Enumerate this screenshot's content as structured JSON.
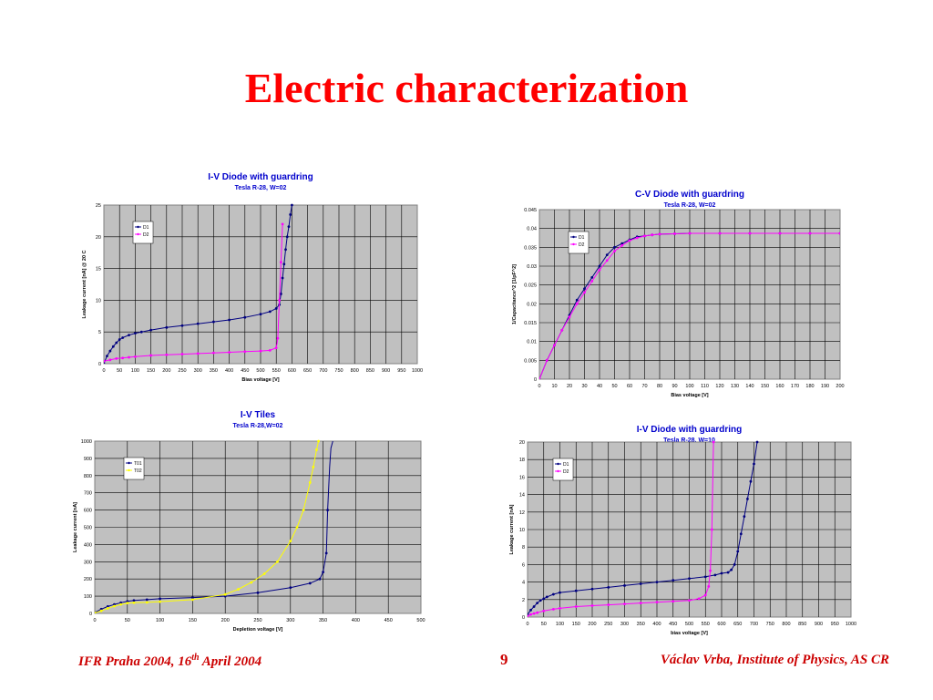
{
  "slide": {
    "title": "Electric characterization",
    "footer_left_pre": "IFR Praha 2004, 16",
    "footer_left_sup": "th",
    "footer_left_post": " April 2004",
    "page_number": "9",
    "footer_right": "Václav Vrba, Institute of Physics, AS CR"
  },
  "colors": {
    "title": "#ff0000",
    "footer": "#cc0000",
    "plot_bg": "#c0c0c0",
    "chart_title": "#0000cc",
    "series_navy": "#000080",
    "series_magenta": "#ff00ff",
    "series_yellow": "#ffff00"
  },
  "chart_data": [
    {
      "type": "line",
      "title": "I-V Diode with guardring",
      "subtitle": "Tesla R-28, W=02",
      "xlabel": "Bias voltage [V]",
      "ylabel": "Leakage current [nA] @ 20 C",
      "xlim": [
        0,
        1000
      ],
      "ylim": [
        0,
        25
      ],
      "xticks": [
        "0",
        "50",
        "100",
        "150",
        "200",
        "250",
        "300",
        "350",
        "400",
        "450",
        "500",
        "550",
        "600",
        "650",
        "700",
        "750",
        "800",
        "850",
        "900",
        "950",
        "1000"
      ],
      "yticks": [
        "0",
        "5",
        "10",
        "15",
        "20",
        "25"
      ],
      "grid": true,
      "legend_position": "top-left",
      "series": [
        {
          "name": "D1",
          "color": "#000080",
          "x": [
            0,
            10,
            20,
            30,
            40,
            50,
            60,
            80,
            100,
            120,
            150,
            200,
            250,
            300,
            350,
            400,
            450,
            500,
            530,
            550,
            560,
            565,
            570,
            575,
            580,
            585,
            590,
            595,
            600
          ],
          "y": [
            0,
            1.2,
            2.0,
            2.7,
            3.3,
            3.8,
            4.1,
            4.5,
            4.8,
            5.0,
            5.3,
            5.7,
            6.0,
            6.3,
            6.6,
            6.9,
            7.3,
            7.8,
            8.2,
            8.7,
            9.3,
            11.0,
            13.5,
            15.7,
            18.0,
            20.0,
            21.6,
            23.5,
            25
          ]
        },
        {
          "name": "D2",
          "color": "#ff00ff",
          "x": [
            0,
            20,
            40,
            60,
            80,
            100,
            150,
            200,
            250,
            300,
            350,
            400,
            450,
            500,
            530,
            550,
            555,
            560,
            565,
            570
          ],
          "y": [
            0.4,
            0.6,
            0.8,
            0.9,
            1.0,
            1.1,
            1.3,
            1.4,
            1.5,
            1.6,
            1.7,
            1.8,
            1.9,
            2.0,
            2.1,
            2.5,
            4.0,
            10.0,
            16.0,
            22.0
          ]
        }
      ]
    },
    {
      "type": "line",
      "title": "C-V Diode with guardring",
      "subtitle": "Tesla R-28, W=02",
      "xlabel": "Bias voltage [V]",
      "ylabel": "1/Capacitance^2 [1/pF^2]",
      "xlim": [
        0,
        200
      ],
      "ylim": [
        0,
        0.045
      ],
      "xticks": [
        "0",
        "10",
        "20",
        "30",
        "40",
        "50",
        "60",
        "70",
        "80",
        "90",
        "100",
        "110",
        "120",
        "130",
        "140",
        "150",
        "160",
        "170",
        "180",
        "190",
        "200"
      ],
      "yticks": [
        "0",
        "0.005",
        "0.01",
        "0.015",
        "0.02",
        "0.025",
        "0.03",
        "0.035",
        "0.04",
        "0.045"
      ],
      "grid": true,
      "legend_position": "top-left",
      "series": [
        {
          "name": "D1",
          "color": "#000080",
          "x": [
            0,
            5,
            10,
            15,
            20,
            25,
            30,
            35,
            40,
            45,
            50,
            55,
            60,
            65,
            70,
            75,
            80,
            90,
            100,
            120,
            140,
            160,
            180,
            200
          ],
          "y": [
            0,
            0.005,
            0.009,
            0.013,
            0.017,
            0.021,
            0.024,
            0.027,
            0.03,
            0.033,
            0.035,
            0.036,
            0.037,
            0.0378,
            0.038,
            0.0383,
            0.0385,
            0.0386,
            0.0387,
            0.0387,
            0.0387,
            0.0387,
            0.0387,
            0.0387
          ]
        },
        {
          "name": "D2",
          "color": "#ff00ff",
          "x": [
            0,
            5,
            10,
            15,
            20,
            25,
            30,
            35,
            40,
            45,
            50,
            55,
            60,
            65,
            70,
            75,
            80,
            90,
            100,
            120,
            140,
            160,
            180,
            200
          ],
          "y": [
            0,
            0.005,
            0.009,
            0.013,
            0.0165,
            0.02,
            0.023,
            0.026,
            0.029,
            0.0315,
            0.034,
            0.0355,
            0.0368,
            0.0375,
            0.038,
            0.0383,
            0.0385,
            0.0386,
            0.0387,
            0.0387,
            0.0387,
            0.0387,
            0.0387,
            0.0387
          ]
        }
      ]
    },
    {
      "type": "line",
      "title": "I-V Tiles",
      "subtitle": "Tesla R-28,W=02",
      "xlabel": "Depletion voltage [V]",
      "ylabel": "Leakage current [nA]",
      "xlim": [
        0,
        500
      ],
      "ylim": [
        0,
        1000
      ],
      "xticks": [
        "0",
        "50",
        "100",
        "150",
        "200",
        "250",
        "300",
        "350",
        "400",
        "450",
        "500"
      ],
      "yticks": [
        "0",
        "100",
        "200",
        "300",
        "400",
        "500",
        "600",
        "700",
        "800",
        "900",
        "1000"
      ],
      "grid": true,
      "legend_position": "top-left",
      "series": [
        {
          "name": "T01",
          "color": "#000080",
          "x": [
            0,
            10,
            20,
            30,
            40,
            50,
            60,
            80,
            100,
            150,
            200,
            250,
            300,
            330,
            345,
            350,
            355,
            357,
            360,
            362,
            365
          ],
          "y": [
            5,
            25,
            40,
            52,
            62,
            70,
            75,
            80,
            85,
            92,
            100,
            120,
            150,
            175,
            200,
            240,
            350,
            600,
            850,
            960,
            1000
          ],
          "marker_max_x": 357
        },
        {
          "name": "T02",
          "color": "#ffff00",
          "x": [
            0,
            10,
            20,
            30,
            40,
            50,
            60,
            80,
            100,
            150,
            200,
            220,
            240,
            260,
            280,
            300,
            310,
            320,
            330,
            335,
            340,
            343
          ],
          "y": [
            3,
            15,
            30,
            42,
            52,
            60,
            62,
            64,
            68,
            80,
            110,
            140,
            180,
            230,
            300,
            420,
            500,
            600,
            760,
            850,
            950,
            1000
          ]
        }
      ]
    },
    {
      "type": "line",
      "title": "I-V Diode with guardring",
      "subtitle": "Tesla R-28, W=10",
      "xlabel": "bias voltage [V]",
      "ylabel": "Leakage current [nA]",
      "xlim": [
        0,
        1000
      ],
      "ylim": [
        0,
        20
      ],
      "xticks": [
        "0",
        "50",
        "100",
        "150",
        "200",
        "250",
        "300",
        "350",
        "400",
        "450",
        "500",
        "550",
        "600",
        "650",
        "700",
        "750",
        "800",
        "850",
        "900",
        "950",
        "1000"
      ],
      "yticks": [
        "0",
        "2",
        "4",
        "6",
        "8",
        "10",
        "12",
        "14",
        "16",
        "18",
        "20"
      ],
      "grid": true,
      "legend_position": "top-left",
      "series": [
        {
          "name": "D1",
          "color": "#000080",
          "x": [
            0,
            10,
            20,
            30,
            40,
            50,
            60,
            80,
            100,
            150,
            200,
            250,
            300,
            350,
            400,
            450,
            500,
            550,
            580,
            600,
            620,
            630,
            640,
            650,
            660,
            670,
            680,
            690,
            700,
            710
          ],
          "y": [
            0.3,
            0.8,
            1.2,
            1.6,
            1.9,
            2.1,
            2.3,
            2.6,
            2.8,
            3.0,
            3.2,
            3.4,
            3.6,
            3.8,
            4.0,
            4.2,
            4.4,
            4.6,
            4.8,
            5.0,
            5.1,
            5.4,
            6.0,
            7.5,
            9.5,
            11.5,
            13.5,
            15.5,
            17.5,
            20.0
          ]
        },
        {
          "name": "D2",
          "color": "#ff00ff",
          "x": [
            0,
            10,
            20,
            30,
            50,
            80,
            100,
            150,
            200,
            250,
            300,
            350,
            400,
            450,
            500,
            530,
            550,
            560,
            565,
            570,
            575
          ],
          "y": [
            0.1,
            0.3,
            0.4,
            0.5,
            0.7,
            0.9,
            1.0,
            1.2,
            1.3,
            1.4,
            1.5,
            1.6,
            1.7,
            1.8,
            1.9,
            2.1,
            2.5,
            3.5,
            5.3,
            10.0,
            20.0
          ]
        }
      ]
    }
  ]
}
